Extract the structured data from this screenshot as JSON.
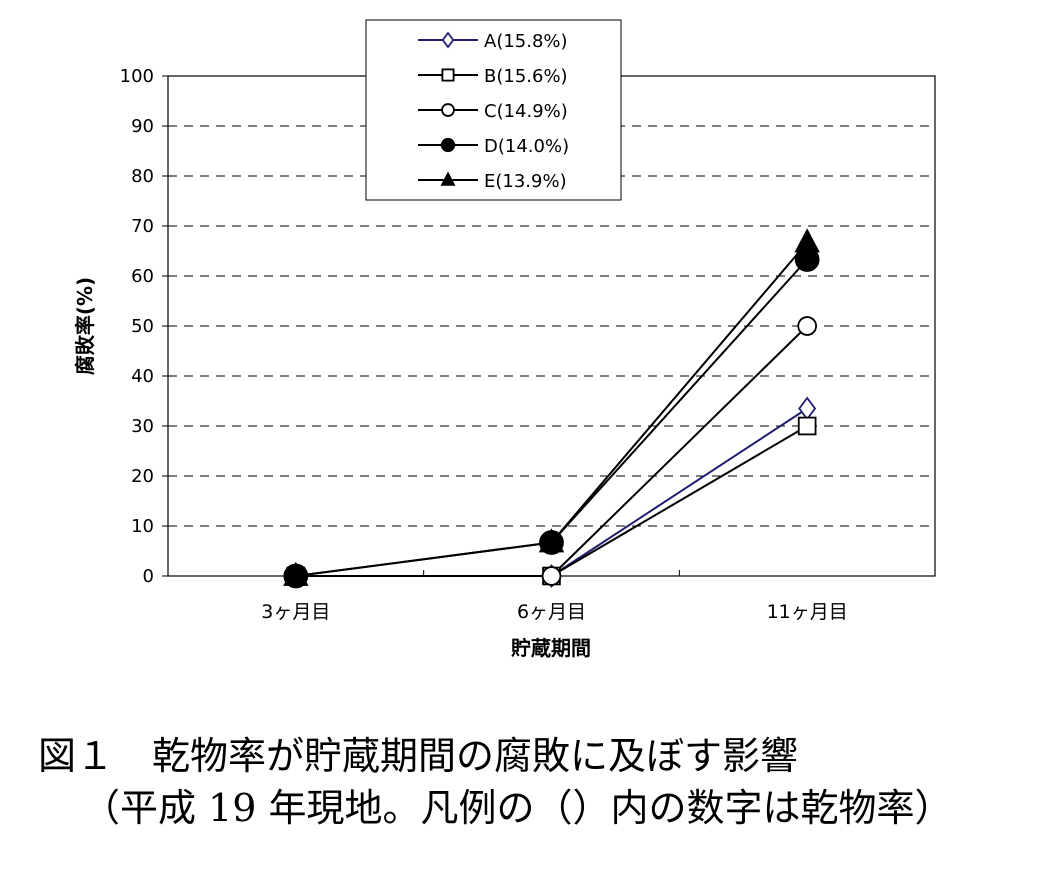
{
  "chart_data": {
    "type": "line",
    "categories": [
      "3ヶ月目",
      "6ヶ月目",
      "11ヶ月目"
    ],
    "series": [
      {
        "name": "A(15.8%)",
        "values": [
          0,
          0,
          33.5
        ],
        "color": "#1f1f6e",
        "marker": "diamond-open"
      },
      {
        "name": "B(15.6%)",
        "values": [
          0,
          0,
          30
        ],
        "color": "#000000",
        "marker": "square-open"
      },
      {
        "name": "C(14.9%)",
        "values": [
          0,
          0,
          50
        ],
        "color": "#000000",
        "marker": "circle-open"
      },
      {
        "name": "D(14.0%)",
        "values": [
          0,
          6.7,
          63.3
        ],
        "color": "#000000",
        "marker": "circle-filled"
      },
      {
        "name": "E(13.9%)",
        "values": [
          0,
          6.7,
          66.7
        ],
        "color": "#000000",
        "marker": "triangle-filled"
      }
    ],
    "xlabel": "貯蔵期間",
    "ylabel": "腐敗率(%)",
    "ylim": [
      0,
      100
    ],
    "yticks": [
      0,
      10,
      20,
      30,
      40,
      50,
      60,
      70,
      80,
      90,
      100
    ],
    "grid": "dashed-horizontal",
    "legend_position": "top-center"
  },
  "caption": {
    "line1": "図１　乾物率が貯蔵期間の腐敗に及ぼす影響",
    "line2": "（平成 19 年現地。凡例の（）内の数字は乾物率）"
  }
}
